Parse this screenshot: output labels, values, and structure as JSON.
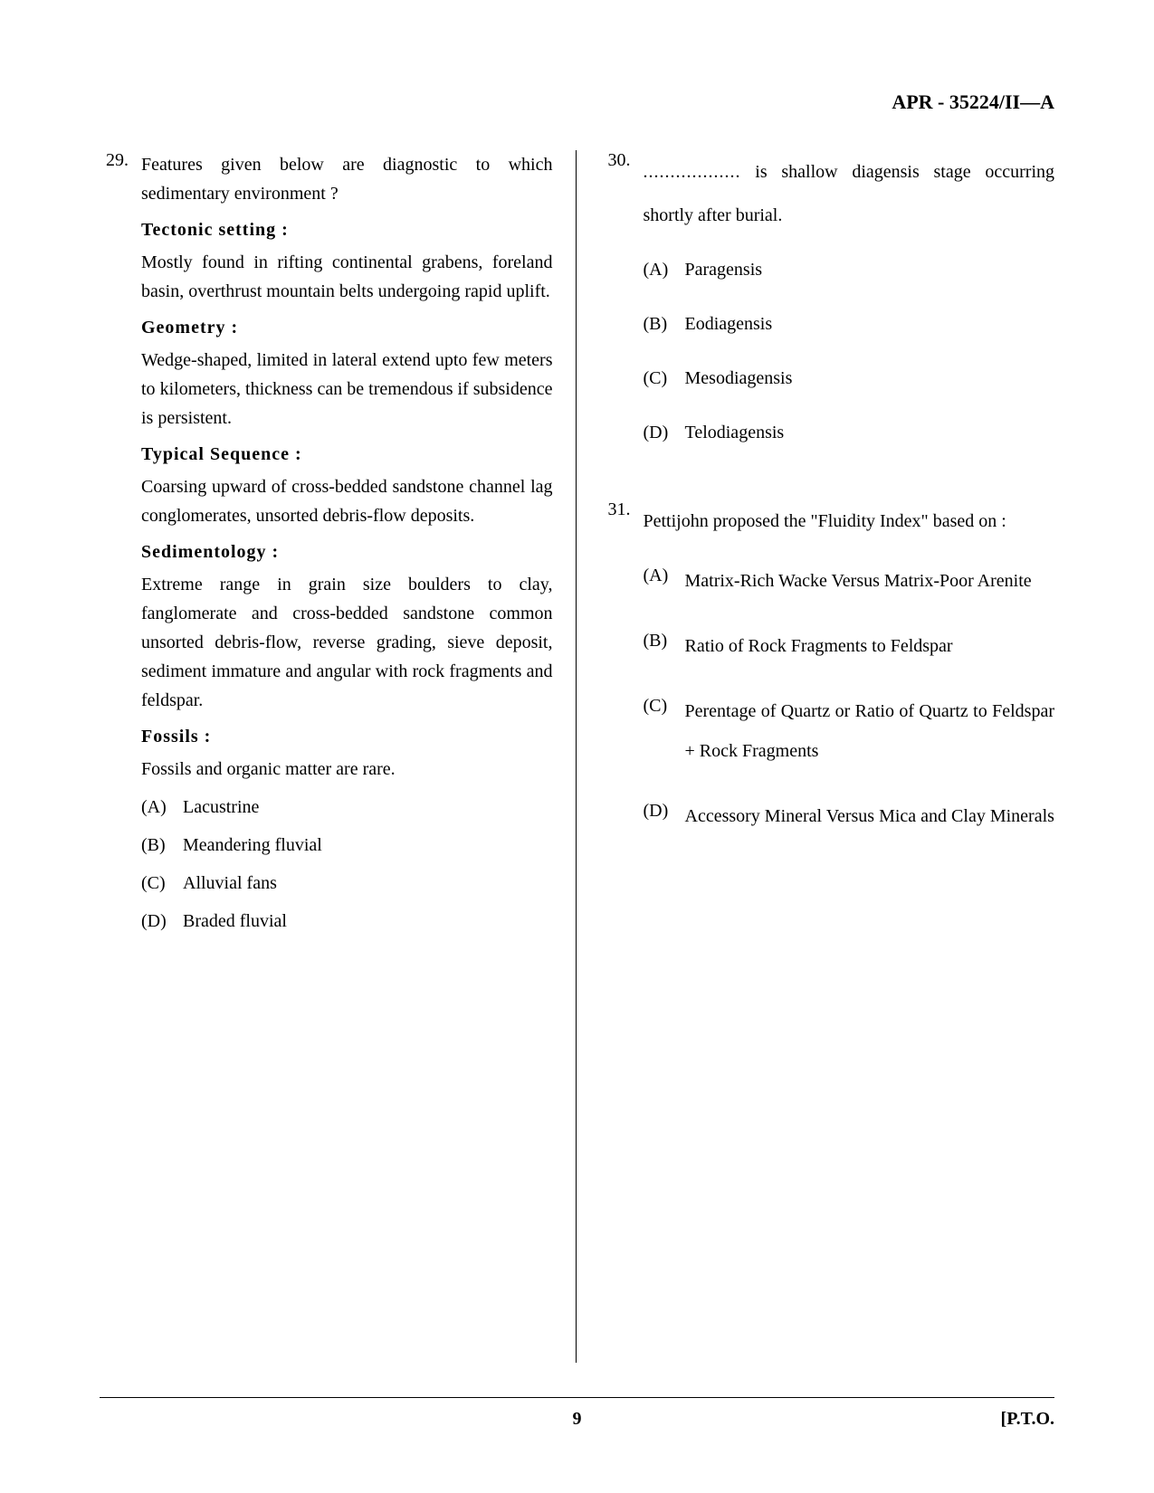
{
  "header": {
    "code": "APR - 35224/II—A"
  },
  "footer": {
    "page_number": "9",
    "pto": "[P.T.O."
  },
  "questions": {
    "q29": {
      "number": "29.",
      "stem": "Features given below are diagnostic to which sedimentary environment ?",
      "sections": [
        {
          "label": "Tectonic setting :",
          "text": "Mostly found in rifting continental grabens, foreland basin, overthrust mountain belts undergoing rapid uplift."
        },
        {
          "label": "Geometry :",
          "text": "Wedge-shaped, limited in lateral extend upto few meters to kilometers, thickness can be tremendous if subsidence is persistent."
        },
        {
          "label": "Typical Sequence :",
          "text": "Coarsing upward of cross-bedded sandstone channel lag conglomerates, unsorted debris-flow deposits."
        },
        {
          "label": "Sedimentology :",
          "text": "Extreme range in grain size boulders to clay, fanglomerate and cross-bedded sandstone common unsorted debris-flow, reverse grading, sieve deposit, sediment immature and angular with rock fragments and feldspar."
        },
        {
          "label": "Fossils :",
          "text": "Fossils and organic matter are rare."
        }
      ],
      "options": [
        {
          "letter": "(A)",
          "text": "Lacustrine"
        },
        {
          "letter": "(B)",
          "text": "Meandering fluvial"
        },
        {
          "letter": "(C)",
          "text": "Alluvial fans"
        },
        {
          "letter": "(D)",
          "text": "Braded fluvial"
        }
      ]
    },
    "q30": {
      "number": "30.",
      "stem_prefix": "..................",
      "stem_suffix": " is shallow diagensis stage occurring shortly after burial.",
      "options": [
        {
          "letter": "(A)",
          "text": "Paragensis"
        },
        {
          "letter": "(B)",
          "text": "Eodiagensis"
        },
        {
          "letter": "(C)",
          "text": "Mesodiagensis"
        },
        {
          "letter": "(D)",
          "text": "Telodiagensis"
        }
      ]
    },
    "q31": {
      "number": "31.",
      "stem": "Pettijohn proposed the \"Fluidity Index\" based on :",
      "options": [
        {
          "letter": "(A)",
          "text": "Matrix-Rich Wacke Versus Matrix-Poor Arenite"
        },
        {
          "letter": "(B)",
          "text": "Ratio of Rock Fragments to Feldspar"
        },
        {
          "letter": "(C)",
          "text": "Perentage of Quartz or Ratio of Quartz to Feldspar + Rock Fragments"
        },
        {
          "letter": "(D)",
          "text": "Accessory Mineral Versus Mica and Clay Minerals"
        }
      ]
    }
  }
}
